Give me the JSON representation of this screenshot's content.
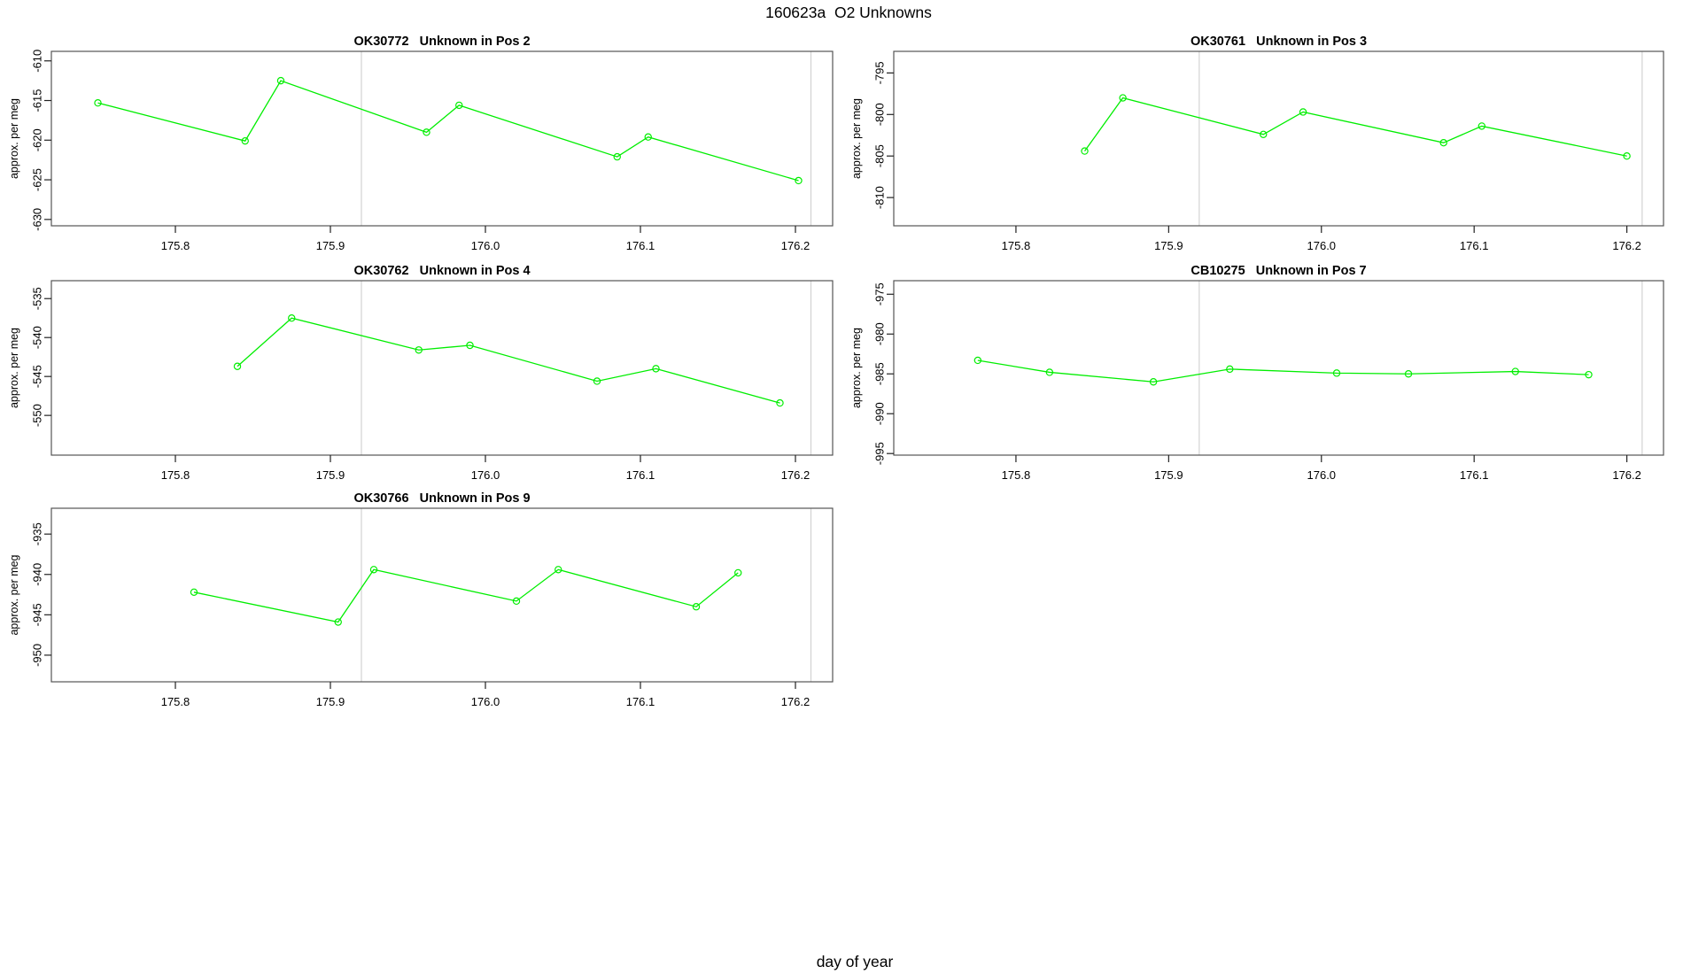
{
  "header": {
    "title": "160623a  O2 Unknowns"
  },
  "footer": {
    "xlabel": "day of year"
  },
  "chart_data": {
    "type": "line",
    "title": "160623a  O2 Unknowns",
    "xlabel": "day of year",
    "x_domain": [
      175.72,
      176.224
    ],
    "x_ticks": [
      175.8,
      175.9,
      176.0,
      176.1,
      176.2
    ],
    "x_tick_labels": [
      "175.8",
      "175.9",
      "176.0",
      "176.1",
      "176.2"
    ],
    "vlines": [
      175.92,
      176.21
    ],
    "series_color": "#00EE00",
    "grid_color": "#D3D3D3",
    "box_color": "#555555",
    "tick_color": "#222222",
    "marker": "open-circle",
    "panels": [
      {
        "id": "OK30772",
        "title": "OK30772   Unknown in Pos 2",
        "row": 0,
        "col": 0,
        "ylabel": "approx. per meg",
        "y_ticks": [
          -630,
          -625,
          -620,
          -615,
          -610
        ],
        "y_domain": [
          -630.8,
          -608.8
        ],
        "points": [
          [
            175.75,
            -615.3
          ],
          [
            175.845,
            -620.1
          ],
          [
            175.868,
            -612.5
          ],
          [
            175.962,
            -619.0
          ],
          [
            175.983,
            -615.6
          ],
          [
            176.085,
            -622.1
          ],
          [
            176.105,
            -619.6
          ],
          [
            176.202,
            -625.1
          ]
        ]
      },
      {
        "id": "OK30761",
        "title": "OK30761   Unknown in Pos 3",
        "row": 0,
        "col": 1,
        "ylabel": "approx. per meg",
        "y_ticks": [
          -810,
          -805,
          -800,
          -795
        ],
        "y_domain": [
          -813.4,
          -792.4
        ],
        "points": [
          [
            175.845,
            -804.4
          ],
          [
            175.87,
            -798.0
          ],
          [
            175.962,
            -802.4
          ],
          [
            175.988,
            -799.7
          ],
          [
            176.08,
            -803.4
          ],
          [
            176.105,
            -801.4
          ],
          [
            176.2,
            -805.0
          ]
        ]
      },
      {
        "id": "OK30762",
        "title": "OK30762   Unknown in Pos 4",
        "row": 1,
        "col": 0,
        "ylabel": "approx. per meg",
        "y_ticks": [
          -550,
          -545,
          -540,
          -535
        ],
        "y_domain": [
          -555.1,
          -532.7
        ],
        "points": [
          [
            175.84,
            -543.7
          ],
          [
            175.875,
            -537.5
          ],
          [
            175.957,
            -541.6
          ],
          [
            175.99,
            -541.0
          ],
          [
            176.072,
            -545.6
          ],
          [
            176.11,
            -544.0
          ],
          [
            176.19,
            -548.4
          ]
        ]
      },
      {
        "id": "CB10275",
        "title": "CB10275   Unknown in Pos 7",
        "row": 1,
        "col": 1,
        "ylabel": "approx. per meg",
        "y_ticks": [
          -995,
          -990,
          -985,
          -980,
          -975
        ],
        "y_domain": [
          -995.2,
          -973.3
        ],
        "points": [
          [
            175.775,
            -983.3
          ],
          [
            175.822,
            -984.8
          ],
          [
            175.89,
            -986.0
          ],
          [
            175.94,
            -984.4
          ],
          [
            176.01,
            -984.9
          ],
          [
            176.057,
            -985.0
          ],
          [
            176.127,
            -984.7
          ],
          [
            176.175,
            -985.1
          ]
        ]
      },
      {
        "id": "OK30766",
        "title": "OK30766   Unknown in Pos 9",
        "row": 2,
        "col": 0,
        "ylabel": "approx. per meg",
        "y_ticks": [
          -950,
          -945,
          -940,
          -935
        ],
        "y_domain": [
          -953.3,
          -931.8
        ],
        "points": [
          [
            175.812,
            -942.2
          ],
          [
            175.905,
            -945.9
          ],
          [
            175.928,
            -939.4
          ],
          [
            176.02,
            -943.3
          ],
          [
            176.047,
            -939.4
          ],
          [
            176.136,
            -944.0
          ],
          [
            176.163,
            -939.8
          ]
        ]
      }
    ]
  }
}
